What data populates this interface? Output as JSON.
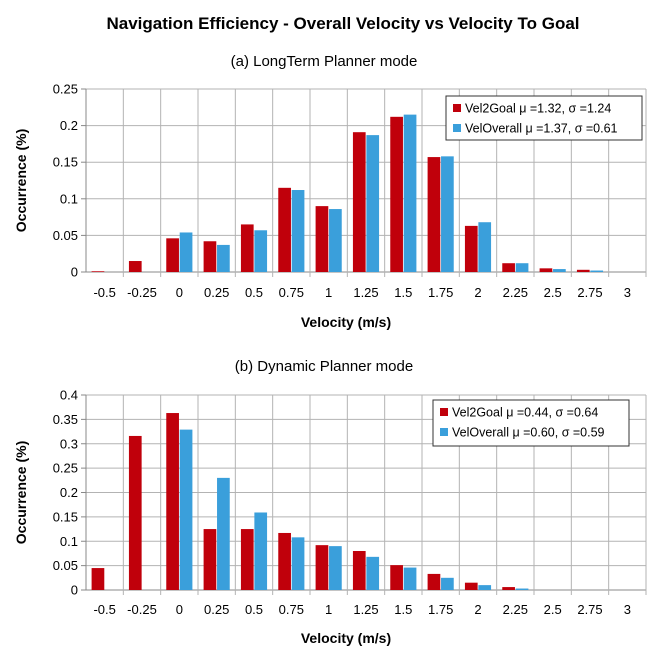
{
  "title": "Navigation Efficiency - Overall Velocity vs Velocity To Goal",
  "colors": {
    "vel2goal": "#c0000b",
    "veloverall": "#3a9fdb",
    "grid": "#b3b3b3",
    "axis": "#888888"
  },
  "chart_data": [
    {
      "type": "bar",
      "title": "(a) LongTerm Planner mode",
      "xlabel": "Velocity (m/s)",
      "ylabel": "Occurrence (%)",
      "ylim": [
        0,
        0.25
      ],
      "yticks": [
        "0",
        "0.05",
        "0.1",
        "0.15",
        "0.2",
        "0.25"
      ],
      "categories": [
        "-0.5",
        "-0.25",
        "0",
        "0.25",
        "0.5",
        "0.75",
        "1",
        "1.25",
        "1.5",
        "1.75",
        "2",
        "2.25",
        "2.5",
        "2.75",
        "3"
      ],
      "grid": true,
      "legend_position": "top-right",
      "series": [
        {
          "name": "Vel2Goal μ =1.32, σ =1.24",
          "color_key": "vel2goal",
          "values": [
            0.001,
            0.015,
            0.046,
            0.042,
            0.065,
            0.115,
            0.09,
            0.191,
            0.212,
            0.157,
            0.063,
            0.012,
            0.005,
            0.003,
            0
          ]
        },
        {
          "name": "VelOverall μ =1.37, σ =0.61",
          "color_key": "veloverall",
          "values": [
            0,
            0,
            0.054,
            0.037,
            0.057,
            0.112,
            0.086,
            0.187,
            0.215,
            0.158,
            0.068,
            0.012,
            0.004,
            0.002,
            0
          ]
        }
      ]
    },
    {
      "type": "bar",
      "title": "(b) Dynamic Planner mode",
      "xlabel": "Velocity (m/s)",
      "ylabel": "Occurrence (%)",
      "ylim": [
        0,
        0.4
      ],
      "yticks": [
        "0",
        "0.05",
        "0.1",
        "0.15",
        "0.2",
        "0.25",
        "0.3",
        "0.35",
        "0.4"
      ],
      "categories": [
        "-0.5",
        "-0.25",
        "0",
        "0.25",
        "0.5",
        "0.75",
        "1",
        "1.25",
        "1.5",
        "1.75",
        "2",
        "2.25",
        "2.5",
        "2.75",
        "3"
      ],
      "grid": true,
      "legend_position": "top-right",
      "series": [
        {
          "name": "Vel2Goal μ =0.44, σ =0.64",
          "color_key": "vel2goal",
          "values": [
            0.045,
            0.316,
            0.363,
            0.125,
            0.125,
            0.117,
            0.092,
            0.08,
            0.051,
            0.033,
            0.015,
            0.006,
            0,
            0,
            0
          ]
        },
        {
          "name": "VelOverall μ =0.60, σ =0.59",
          "color_key": "veloverall",
          "values": [
            0,
            0,
            0.329,
            0.23,
            0.159,
            0.108,
            0.09,
            0.068,
            0.046,
            0.025,
            0.01,
            0.003,
            0,
            0,
            0
          ]
        }
      ]
    }
  ]
}
